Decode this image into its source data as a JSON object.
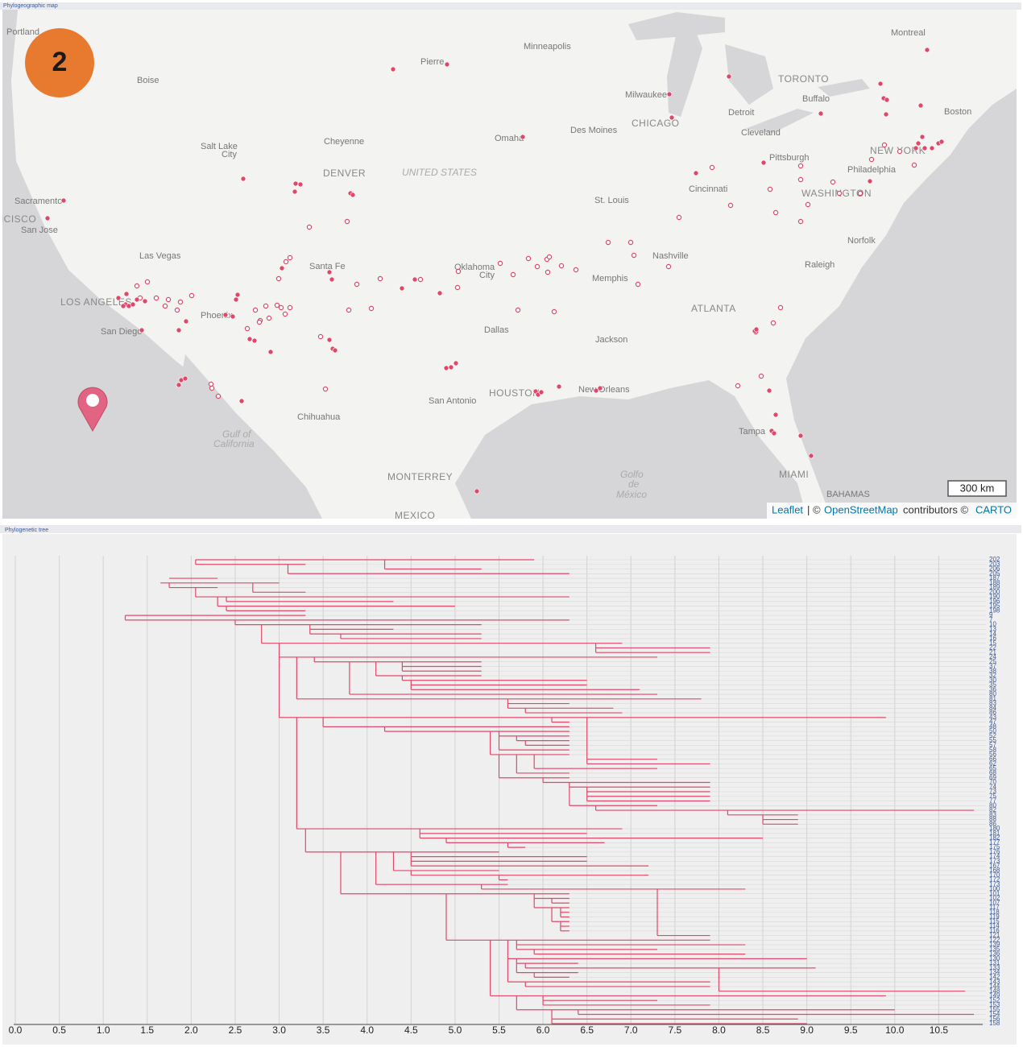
{
  "map": {
    "title": "Phylogeographic map",
    "badge": "2",
    "scale": "300 km",
    "cities": [
      "Portland",
      "Boise",
      "Pierre",
      "Minneapolis",
      "Montreal",
      "Milwaukee",
      "TORONTO",
      "Buffalo",
      "Boston",
      "Detroit",
      "CHICAGO",
      "Des Moines",
      "Omaha",
      "Cleveland",
      "Salt Lake",
      "City",
      "Cheyenne",
      "NEW YORK",
      "Pittsburgh",
      "Philadelphia",
      "DENVER",
      "UNITED STATES",
      "Cincinnati",
      "WASHINGTON",
      "Sacramento",
      "St. Louis",
      "SAN FRANCISCO",
      "San Jose",
      "Norfolk",
      "Las Vegas",
      "Nashville",
      "Santa Fe",
      "Oklahoma",
      "City",
      "Memphis",
      "Raleigh",
      "LOS ANGELES",
      "Phoenix",
      "ATLANTA",
      "San Diego",
      "Dallas",
      "Jackson",
      "San Antonio",
      "HOUSTON",
      "New Orleans",
      "Chihuahua",
      "Gulf of",
      "California",
      "Tampa",
      "Golfo",
      "de",
      "México",
      "MIAMI",
      "MONTERREY",
      "BAHAMAS",
      "MEXICO"
    ],
    "attribution": {
      "leaflet": "Leaflet",
      "sep": "| ©",
      "osm": "OpenStreetMap",
      "contributors": "contributors ©",
      "carto": "CARTO"
    }
  },
  "tree": {
    "title": "Phylogenetic tree",
    "xlim": [
      0,
      11
    ],
    "xticks": [
      {
        "value": 0,
        "label": "0.0"
      },
      0.5,
      {
        "value": 1,
        "label": "1.0"
      },
      1.5,
      {
        "value": 2,
        "label": "2.0"
      },
      2.5,
      {
        "value": 3,
        "label": "3.0"
      },
      3.5,
      {
        "value": 4,
        "label": "4.0"
      },
      4.5,
      {
        "value": 5,
        "label": "5.0"
      },
      5.5,
      {
        "value": 6,
        "label": "6.0"
      },
      6.5,
      {
        "value": 7,
        "label": "7.0"
      },
      7.5,
      {
        "value": 8,
        "label": "8.0"
      },
      8.5,
      {
        "value": 9,
        "label": "9.0"
      },
      9.5,
      {
        "value": 10,
        "label": "10.0"
      },
      10.5
    ],
    "leaves": [
      {
        "label": "202",
        "start": 2.05,
        "end": 5.9
      },
      {
        "label": "203",
        "start": 2.05,
        "end": 3.3
      },
      {
        "label": "206",
        "start": 4.2,
        "end": 5.3
      },
      {
        "label": "205",
        "start": 3.1,
        "end": 6.3
      },
      {
        "label": "187",
        "start": 1.75,
        "end": 2.3
      },
      {
        "label": "188",
        "start": 1.65,
        "end": 3.0
      },
      {
        "label": "189",
        "start": 1.75,
        "end": 2.3
      },
      {
        "label": "200",
        "start": 2.7,
        "end": 3.3
      },
      {
        "label": "190",
        "start": 2.05,
        "end": 6.3
      },
      {
        "label": "196",
        "start": 2.4,
        "end": 4.3
      },
      {
        "label": "195",
        "start": 2.3,
        "end": 5.0
      },
      {
        "label": "198",
        "start": 2.4,
        "end": 3.3
      },
      {
        "label": "9",
        "start": 1.25,
        "end": 3.3
      },
      {
        "label": "7",
        "start": 1.25,
        "end": 6.3
      },
      {
        "label": "10",
        "start": 2.5,
        "end": 5.3
      },
      {
        "label": "13",
        "start": 3.35,
        "end": 4.3
      },
      {
        "label": "14",
        "start": 3.35,
        "end": 5.3
      },
      {
        "label": "16",
        "start": 3.7,
        "end": 5.3
      },
      {
        "label": "15",
        "start": 2.8,
        "end": 6.9
      },
      {
        "label": "22",
        "start": 6.6,
        "end": 7.9
      },
      {
        "label": "21",
        "start": 6.6,
        "end": 7.9
      },
      {
        "label": "24",
        "start": 3.0,
        "end": 7.3
      },
      {
        "label": "25",
        "start": 3.4,
        "end": 5.3
      },
      {
        "label": "37",
        "start": 4.4,
        "end": 5.3
      },
      {
        "label": "38",
        "start": 4.4,
        "end": 5.3
      },
      {
        "label": "32",
        "start": 4.1,
        "end": 5.3
      },
      {
        "label": "30",
        "start": 4.4,
        "end": 6.5
      },
      {
        "label": "35",
        "start": 4.5,
        "end": 6.5
      },
      {
        "label": "36",
        "start": 4.5,
        "end": 7.1
      },
      {
        "label": "80",
        "start": 3.8,
        "end": 7.3
      },
      {
        "label": "81",
        "start": 3.2,
        "end": 7.8
      },
      {
        "label": "83",
        "start": 5.6,
        "end": 6.3
      },
      {
        "label": "84",
        "start": 5.6,
        "end": 6.8
      },
      {
        "label": "86",
        "start": 5.8,
        "end": 6.9
      },
      {
        "label": "43",
        "start": 3.0,
        "end": 9.9
      },
      {
        "label": "47",
        "start": 6.1,
        "end": 6.3
      },
      {
        "label": "48",
        "start": 3.5,
        "end": 6.3
      },
      {
        "label": "50",
        "start": 4.2,
        "end": 6.3
      },
      {
        "label": "52",
        "start": 5.5,
        "end": 6.3
      },
      {
        "label": "55",
        "start": 5.7,
        "end": 6.3
      },
      {
        "label": "57",
        "start": 5.8,
        "end": 6.3
      },
      {
        "label": "58",
        "start": 5.5,
        "end": 6.3
      },
      {
        "label": "56",
        "start": 5.4,
        "end": 6.3
      },
      {
        "label": "66",
        "start": 6.5,
        "end": 7.3
      },
      {
        "label": "62",
        "start": 6.5,
        "end": 7.9
      },
      {
        "label": "65",
        "start": 5.9,
        "end": 7.3
      },
      {
        "label": "68",
        "start": 5.7,
        "end": 6.3
      },
      {
        "label": "69",
        "start": 5.5,
        "end": 6.3
      },
      {
        "label": "70",
        "start": 6.0,
        "end": 7.9
      },
      {
        "label": "74",
        "start": 6.3,
        "end": 7.9
      },
      {
        "label": "73",
        "start": 6.5,
        "end": 7.9
      },
      {
        "label": "75",
        "start": 6.5,
        "end": 7.9
      },
      {
        "label": "77",
        "start": 6.5,
        "end": 7.9
      },
      {
        "label": "80",
        "start": 6.3,
        "end": 7.3
      },
      {
        "label": "82",
        "start": 6.6,
        "end": 10.9
      },
      {
        "label": "83",
        "start": 8.1,
        "end": 8.9
      },
      {
        "label": "88",
        "start": 8.5,
        "end": 8.9
      },
      {
        "label": "86",
        "start": 8.5,
        "end": 8.9
      },
      {
        "label": "180",
        "start": 3.2,
        "end": 6.9
      },
      {
        "label": "181",
        "start": 4.6,
        "end": 6.5
      },
      {
        "label": "182",
        "start": 4.6,
        "end": 8.5
      },
      {
        "label": "177",
        "start": 4.9,
        "end": 6.7
      },
      {
        "label": "175",
        "start": 5.6,
        "end": 5.8
      },
      {
        "label": "176",
        "start": 3.3,
        "end": 5.5
      },
      {
        "label": "174",
        "start": 4.5,
        "end": 6.5
      },
      {
        "label": "173",
        "start": 4.5,
        "end": 6.5
      },
      {
        "label": "167",
        "start": 4.5,
        "end": 7.2
      },
      {
        "label": "168",
        "start": 4.3,
        "end": 5.5
      },
      {
        "label": "170",
        "start": 4.5,
        "end": 7.2
      },
      {
        "label": "172",
        "start": 5.5,
        "end": 5.6
      },
      {
        "label": "173",
        "start": 4.1,
        "end": 5.6
      },
      {
        "label": "100",
        "start": 5.3,
        "end": 8.3
      },
      {
        "label": "101",
        "start": 3.7,
        "end": 6.3
      },
      {
        "label": "102",
        "start": 5.9,
        "end": 6.3
      },
      {
        "label": "107",
        "start": 6.1,
        "end": 6.3
      },
      {
        "label": "117",
        "start": 5.9,
        "end": 6.3
      },
      {
        "label": "118",
        "start": 6.2,
        "end": 6.3
      },
      {
        "label": "119",
        "start": 6.2,
        "end": 6.3
      },
      {
        "label": "115",
        "start": 6.1,
        "end": 6.3
      },
      {
        "label": "114",
        "start": 6.2,
        "end": 6.3
      },
      {
        "label": "116",
        "start": 6.2,
        "end": 6.3
      },
      {
        "label": "121",
        "start": 7.3,
        "end": 7.9
      },
      {
        "label": "122",
        "start": 4.9,
        "end": 7.9
      },
      {
        "label": "139",
        "start": 5.7,
        "end": 8.3
      },
      {
        "label": "135",
        "start": 5.7,
        "end": 7.3
      },
      {
        "label": "136",
        "start": 5.9,
        "end": 8.3
      },
      {
        "label": "130",
        "start": 5.6,
        "end": 9.0
      },
      {
        "label": "131",
        "start": 5.7,
        "end": 6.4
      },
      {
        "label": "133",
        "start": 5.8,
        "end": 9.1
      },
      {
        "label": "134",
        "start": 5.7,
        "end": 6.4
      },
      {
        "label": "142",
        "start": 5.9,
        "end": 6.3
      },
      {
        "label": "143",
        "start": 5.6,
        "end": 7.9
      },
      {
        "label": "144",
        "start": 5.8,
        "end": 7.9
      },
      {
        "label": "148",
        "start": 8.0,
        "end": 10.8
      },
      {
        "label": "149",
        "start": 5.4,
        "end": 9.9
      },
      {
        "label": "152",
        "start": 6.0,
        "end": 7.3
      },
      {
        "label": "153",
        "start": 6.0,
        "end": 7.9
      },
      {
        "label": "155",
        "start": 5.7,
        "end": 10.0
      },
      {
        "label": "154",
        "start": 6.4,
        "end": 10.9
      },
      {
        "label": "156",
        "start": 6.1,
        "end": 8.9
      },
      {
        "label": "158",
        "start": 6.1,
        "end": 9.0
      }
    ]
  }
}
